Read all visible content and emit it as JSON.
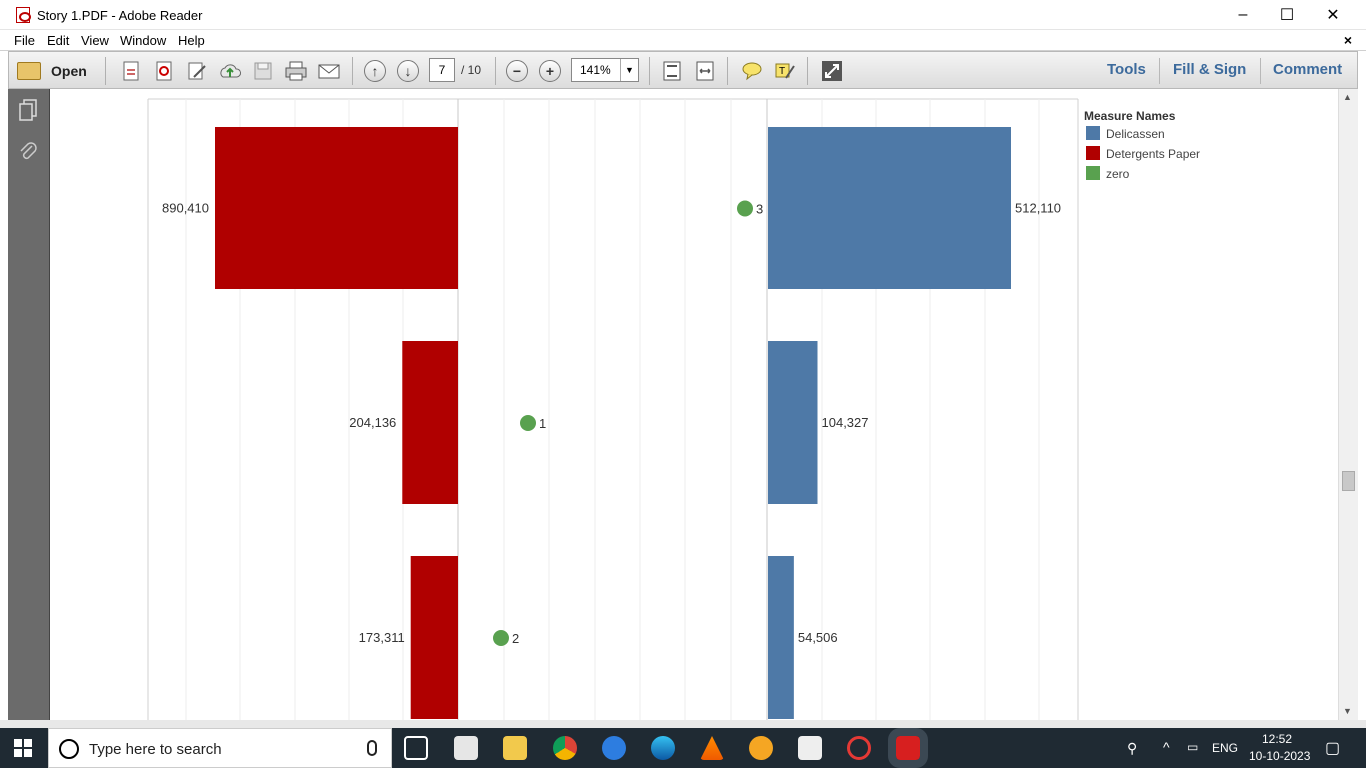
{
  "window": {
    "title": "Story 1.PDF - Adobe Reader",
    "minimize": "–",
    "maximize": "☐",
    "close": "✕"
  },
  "menu": {
    "items": [
      "File",
      "Edit",
      "View",
      "Window",
      "Help"
    ],
    "close_doc": "×"
  },
  "toolbar": {
    "open_label": "Open",
    "page_current": "7",
    "page_total": "/ 10",
    "zoom": "141%",
    "tools_label": "Tools",
    "fill_sign_label": "Fill & Sign",
    "comment_label": "Comment"
  },
  "chart_data": {
    "type": "bar",
    "legend": {
      "title": "Measure Names",
      "placement": "top-right",
      "entries": [
        {
          "name": "Delicassen",
          "color": "#4e79a7"
        },
        {
          "name": "Detergents Paper",
          "color": "#b00000"
        },
        {
          "name": "zero",
          "color": "#59a14f"
        }
      ]
    },
    "rows": [
      {
        "detergents_paper": 890410,
        "detergents_label": "890,410",
        "zero_value": 3,
        "zero_label": "3",
        "delicassen": 512110,
        "delicassen_label": "512,110"
      },
      {
        "detergents_paper": 204136,
        "detergents_label": "204,136",
        "zero_value": 1,
        "zero_label": "1",
        "delicassen": 104327,
        "delicassen_label": "104,327"
      },
      {
        "detergents_paper": 173311,
        "detergents_label": "173,311",
        "zero_value": 2,
        "zero_label": "2",
        "delicassen": 54506,
        "delicassen_label": "54,506"
      }
    ]
  },
  "taskbar": {
    "search_placeholder": "Type here to search",
    "language": "ENG",
    "time": "12:52",
    "date": "10-10-2023"
  }
}
